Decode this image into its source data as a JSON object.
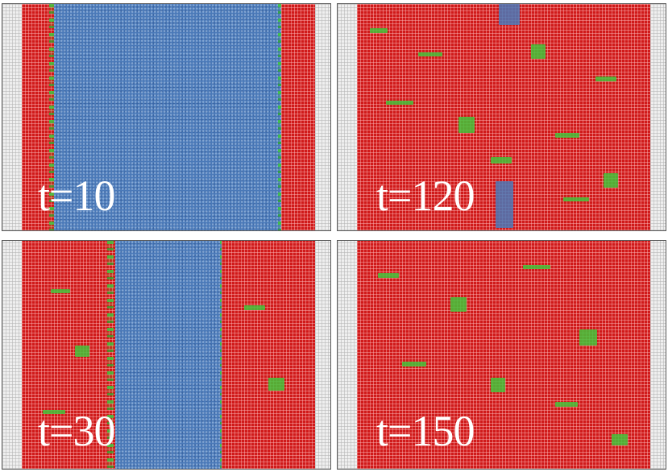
{
  "panels": [
    {
      "label": "t=10"
    },
    {
      "label": "t=120"
    },
    {
      "label": "t=30"
    },
    {
      "label": "t=150"
    }
  ],
  "colors": {
    "phase_a": "#d01a1a",
    "phase_b": "#4a79b8",
    "interface": "#43c43b",
    "padding": "#efefef",
    "label": "#ffffff"
  }
}
